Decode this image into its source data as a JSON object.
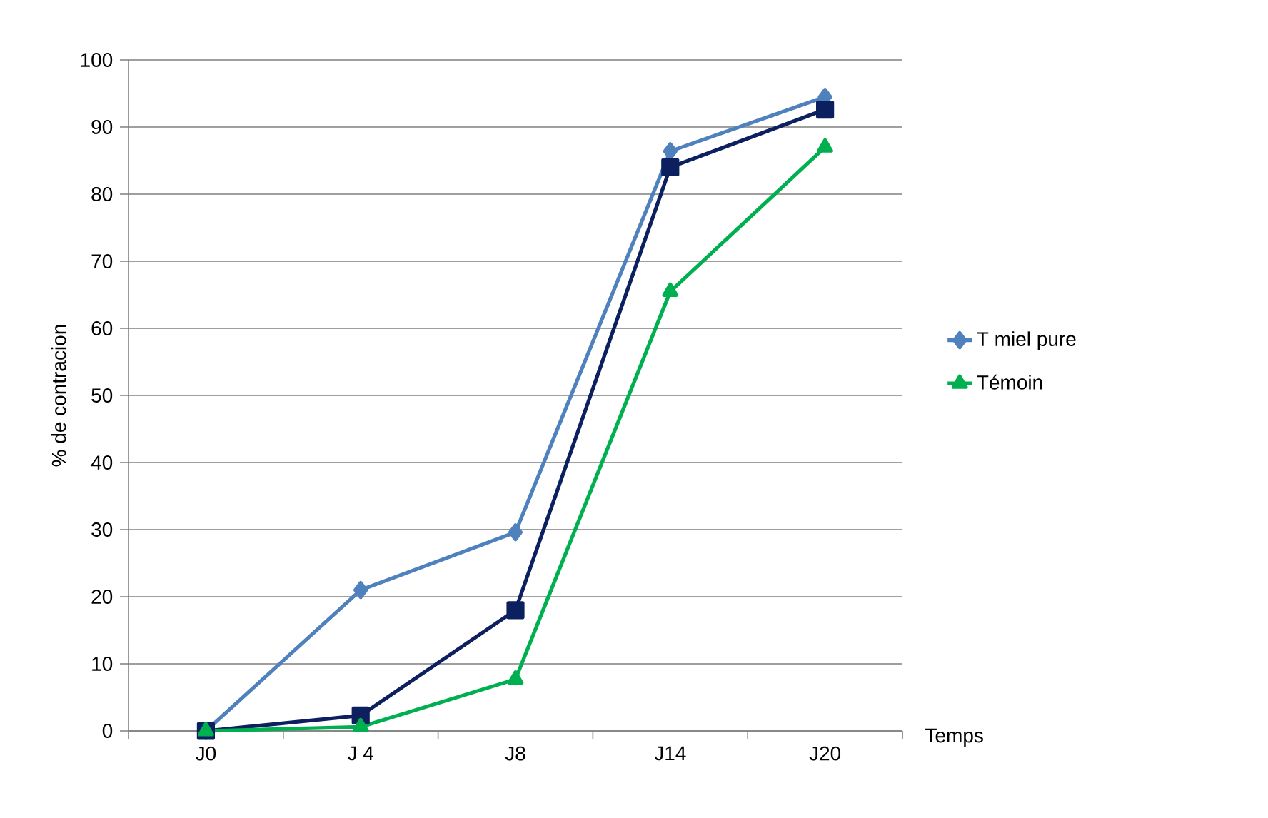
{
  "chart_data": {
    "type": "line",
    "ylabel": "% de contracion",
    "xlabel": "Temps",
    "categories": [
      "J0",
      "J 4",
      "J8",
      "J14",
      "J20"
    ],
    "ylim": [
      0,
      100
    ],
    "yticks": [
      0,
      10,
      20,
      30,
      40,
      50,
      60,
      70,
      80,
      90,
      100
    ],
    "grid": "y",
    "legend": "right",
    "series": [
      {
        "name": "T miel pure",
        "color": "#4f81bd",
        "marker": "diamond",
        "values": [
          0,
          21,
          29.6,
          86.4,
          94.5
        ]
      },
      {
        "color": "#0c2060",
        "marker": "square",
        "values": [
          0,
          2.3,
          18,
          84,
          92.6
        ]
      },
      {
        "name": "Témoin",
        "color": "#00b050",
        "marker": "triangle",
        "values": [
          0,
          0.6,
          7.7,
          65.5,
          87
        ]
      }
    ]
  }
}
